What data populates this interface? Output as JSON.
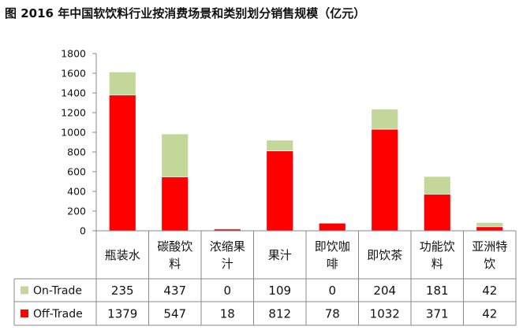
{
  "title": "图  2016 年中国软饮料行业按消费场景和类别划分销售规模（亿元）",
  "chart_data": {
    "type": "bar",
    "stacked": true,
    "categories": [
      "瓶装水",
      "碳酸饮料",
      "浓缩果汁",
      "果汁",
      "即饮咖啡",
      "即饮茶",
      "功能饮料",
      "亚洲特饮"
    ],
    "category_lines": [
      [
        "瓶装水"
      ],
      [
        "碳酸饮",
        "料"
      ],
      [
        "浓缩果",
        "汁"
      ],
      [
        "果汁"
      ],
      [
        "即饮咖",
        "啡"
      ],
      [
        "即饮茶"
      ],
      [
        "功能饮",
        "料"
      ],
      [
        "亚洲特",
        "饮"
      ]
    ],
    "series": [
      {
        "name": "Off-Trade",
        "values": [
          1379,
          547,
          18,
          812,
          78,
          1032,
          371,
          42
        ],
        "color": "#ff0000"
      },
      {
        "name": "On-Trade",
        "values": [
          235,
          437,
          0,
          109,
          0,
          204,
          181,
          42
        ],
        "color": "#c4d79b"
      }
    ],
    "ylim": [
      0,
      1800
    ],
    "yticks": [
      0,
      200,
      400,
      600,
      800,
      1000,
      1200,
      1400,
      1600,
      1800
    ],
    "grid": false,
    "legend": "data-table"
  }
}
